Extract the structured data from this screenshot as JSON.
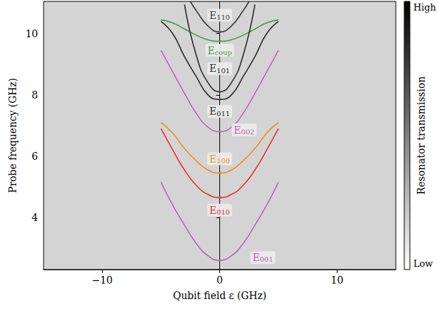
{
  "chart_data": {
    "type": "line",
    "xlabel": "Qubit field ε (GHz)",
    "ylabel": "Probe frequency (GHz)",
    "xlim": [
      -15,
      15
    ],
    "xticks": [
      {
        "value": -10,
        "label": "−10"
      },
      0,
      10
    ],
    "ylim": [
      2.3,
      11.05
    ],
    "yticks": [
      4,
      6,
      8,
      10
    ],
    "grid": false,
    "colorbar": {
      "label": "Resonator transmission",
      "high": "High",
      "low": "Low"
    },
    "series": [
      {
        "name": "E110",
        "color": "#3a3a3a",
        "x": [
          -2.5,
          -2,
          -1,
          0,
          1,
          2,
          2.5
        ],
        "values": [
          11.05,
          10.75,
          10.25,
          10.05,
          10.25,
          10.75,
          11.05
        ]
      },
      {
        "name": "Ecoup",
        "color": "#3a9e48",
        "x": [
          -5,
          -4,
          -3,
          -2,
          -1,
          0,
          1,
          2,
          3,
          4,
          5
        ],
        "values": [
          10.45,
          10.35,
          10.15,
          9.95,
          9.8,
          9.75,
          9.8,
          9.95,
          10.15,
          10.35,
          10.45
        ]
      },
      {
        "name": "E101",
        "color": "#2a2a2a",
        "x": [
          -3,
          -2,
          -1,
          0,
          1,
          2,
          3
        ],
        "values": [
          10.95,
          9.3,
          8.4,
          8.1,
          8.4,
          9.3,
          10.95
        ]
      },
      {
        "name": "E011",
        "color": "#2a2a2a",
        "x": [
          -5,
          -4,
          -3,
          -2,
          -1,
          0,
          1,
          2,
          3,
          4,
          5
        ],
        "values": [
          10.4,
          10.0,
          9.25,
          8.6,
          8.0,
          7.85,
          8.0,
          8.6,
          9.25,
          10.0,
          10.4
        ]
      },
      {
        "name": "E002",
        "color": "#c060c0",
        "x": [
          -5,
          -4,
          -3,
          -2,
          -1,
          0,
          1,
          2,
          3,
          4,
          5
        ],
        "values": [
          9.45,
          8.75,
          8.05,
          7.4,
          6.95,
          6.8,
          6.95,
          7.4,
          8.05,
          8.75,
          9.45
        ]
      },
      {
        "name": "E100",
        "color": "#f0901a",
        "x": [
          -5,
          -4,
          -3,
          -2,
          -1,
          0,
          1,
          2,
          3,
          4,
          5
        ],
        "values": [
          7.1,
          6.75,
          6.25,
          5.85,
          5.55,
          5.45,
          5.55,
          5.85,
          6.25,
          6.75,
          7.1
        ]
      },
      {
        "name": "E010",
        "color": "#e8302a",
        "x": [
          -5,
          -4,
          -3,
          -2,
          -1,
          0,
          1,
          2,
          3,
          4,
          5
        ],
        "values": [
          6.9,
          6.2,
          5.55,
          5.05,
          4.75,
          4.65,
          4.75,
          5.05,
          5.55,
          6.2,
          6.9
        ]
      },
      {
        "name": "E001",
        "color": "#c060c0",
        "x": [
          -5,
          -4,
          -3,
          -2,
          -1,
          0,
          1,
          2,
          3,
          4,
          5
        ],
        "values": [
          5.15,
          4.4,
          3.75,
          3.15,
          2.75,
          2.6,
          2.75,
          3.15,
          3.75,
          4.4,
          5.15
        ]
      }
    ]
  }
}
